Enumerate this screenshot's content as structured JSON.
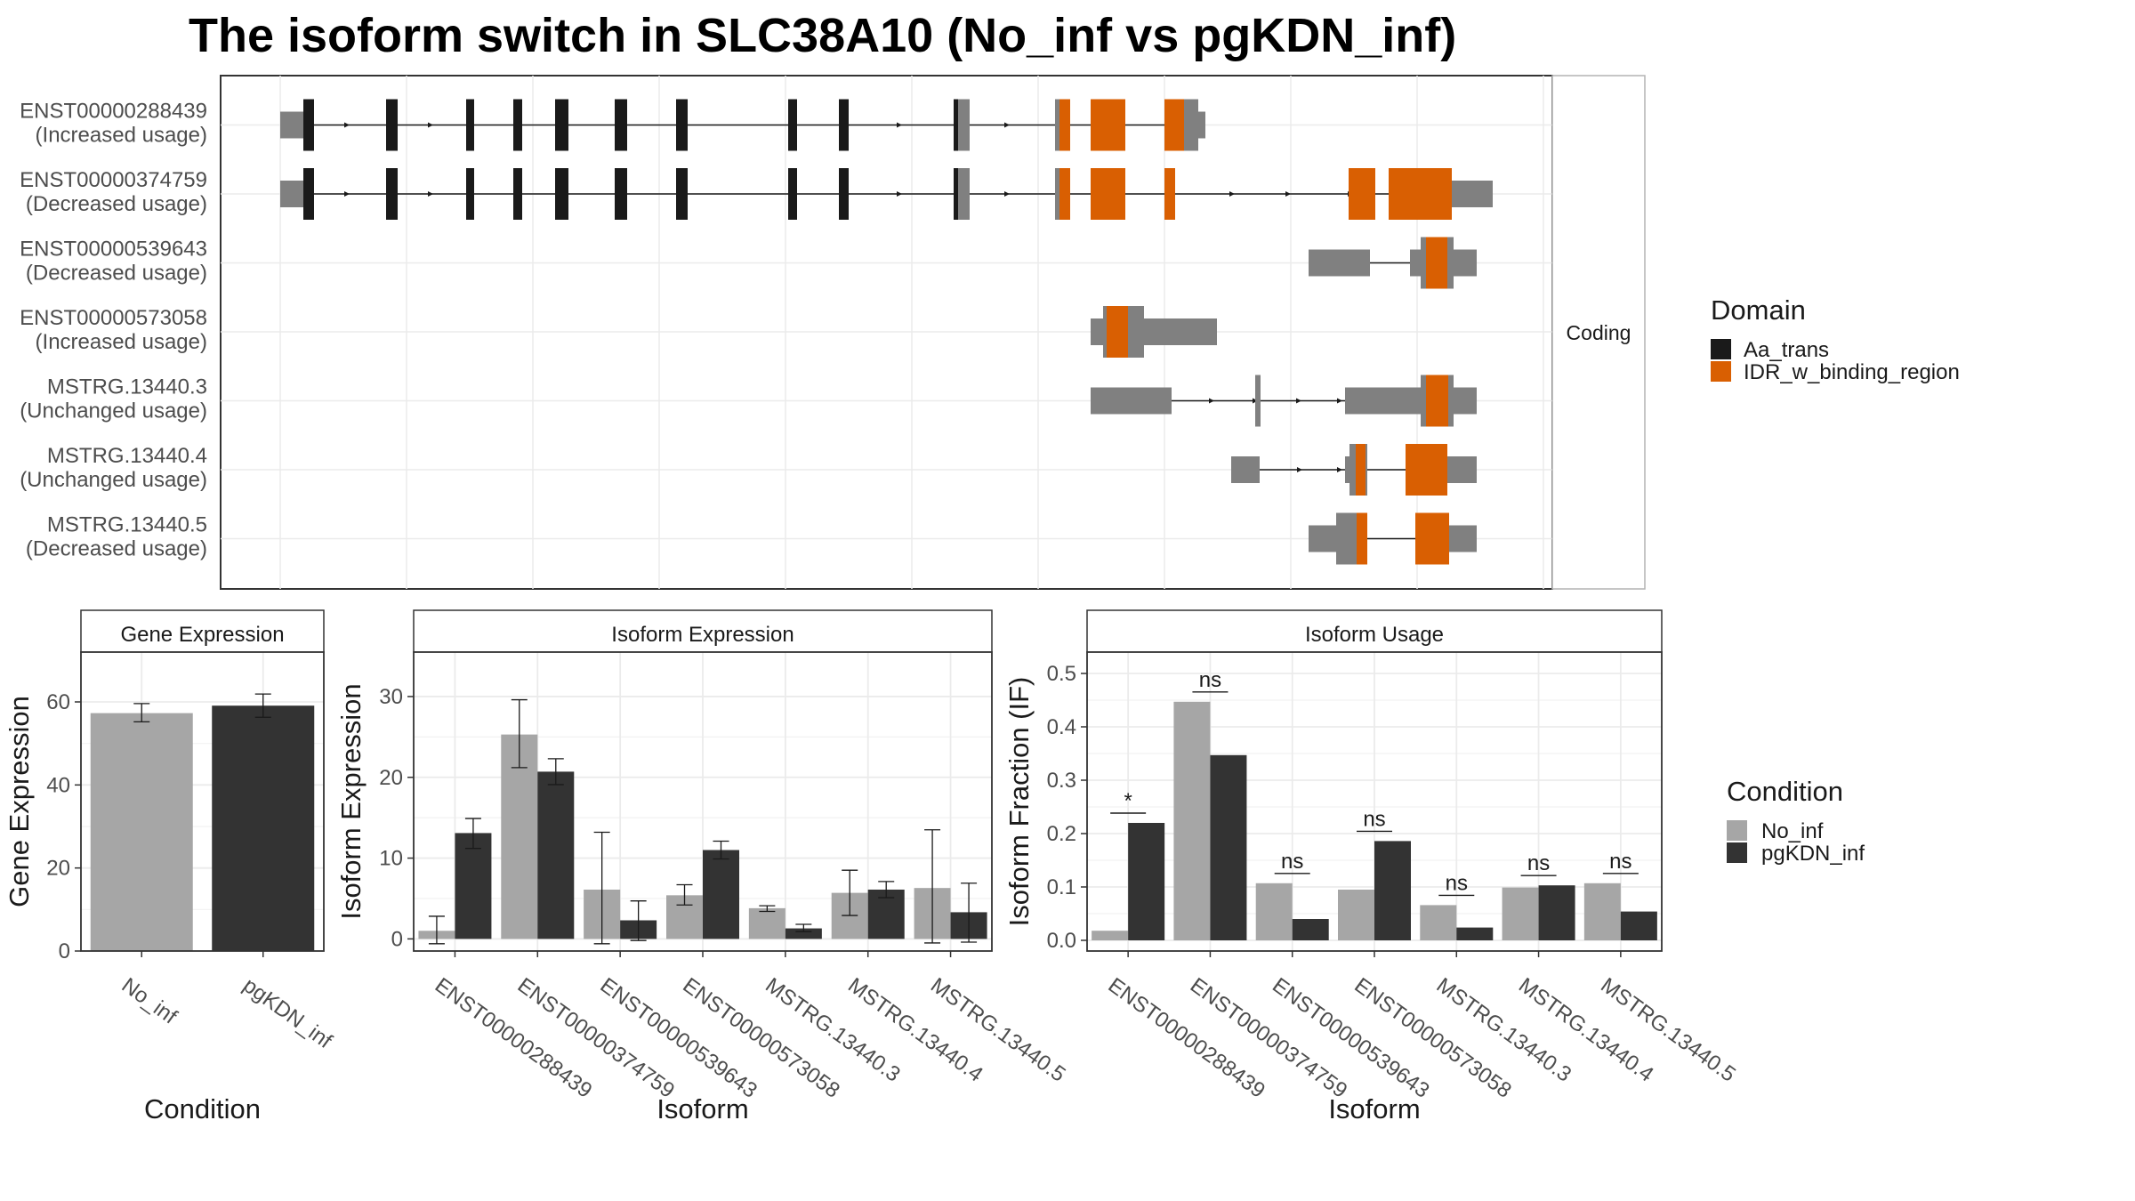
{
  "title": "The isoform switch in SLC38A10 (No_inf vs pgKDN_inf)",
  "colors": {
    "aa_trans": "#1a1a1a",
    "idr": "#d95f02",
    "utr": "#808080",
    "no_inf": "#a6a6a6",
    "pgkdn_inf": "#333333"
  },
  "chart_data": [
    {
      "id": "isoform-structure",
      "type": "gene-structure",
      "facet_label": "Coding",
      "legend": {
        "title": "Domain",
        "items": [
          "Aa_trans",
          "IDR_w_binding_region"
        ]
      },
      "rows": [
        {
          "name": "ENST00000288439",
          "usage": "(Increased usage)"
        },
        {
          "name": "ENST00000374759",
          "usage": "(Decreased usage)"
        },
        {
          "name": "ENST00000539643",
          "usage": "(Decreased usage)"
        },
        {
          "name": "ENST00000573058",
          "usage": "(Increased usage)"
        },
        {
          "name": "MSTRG.13440.3",
          "usage": "(Unchanged usage)"
        },
        {
          "name": "MSTRG.13440.4",
          "usage": "(Unchanged usage)"
        },
        {
          "name": "MSTRG.13440.5",
          "usage": "(Decreased usage)"
        }
      ]
    },
    {
      "id": "gene-expression",
      "type": "bar",
      "facet_label": "Gene Expression",
      "xlabel": "Condition",
      "ylabel": "Gene Expression",
      "ylim": [
        0,
        72
      ],
      "yticks": [
        0,
        20,
        40,
        60
      ],
      "categories": [
        "No_inf",
        "pgKDN_inf"
      ],
      "values": [
        57.3,
        59.1
      ],
      "errors": [
        [
          55.2,
          59.6
        ],
        [
          56.3,
          61.9
        ]
      ]
    },
    {
      "id": "isoform-expression",
      "type": "bar",
      "facet_label": "Isoform Expression",
      "xlabel": "Isoform",
      "ylabel": "Isoform Expression",
      "ylim": [
        -1.5,
        35.5
      ],
      "yticks": [
        0,
        10,
        20,
        30
      ],
      "categories": [
        "ENST00000288439",
        "ENST00000374759",
        "ENST00000539643",
        "ENST00000573058",
        "MSTRG.13440.3",
        "MSTRG.13440.4",
        "MSTRG.13440.5"
      ],
      "series": [
        {
          "name": "No_inf",
          "values": [
            1.0,
            25.3,
            6.1,
            5.4,
            3.8,
            5.7,
            6.3
          ],
          "errors": [
            [
              -0.6,
              2.8
            ],
            [
              21.2,
              29.6
            ],
            [
              -0.6,
              13.2
            ],
            [
              4.2,
              6.7
            ],
            [
              3.4,
              4.1
            ],
            [
              2.9,
              8.5
            ],
            [
              -0.5,
              13.5
            ]
          ]
        },
        {
          "name": "pgKDN_inf",
          "values": [
            13.1,
            20.7,
            2.3,
            11.0,
            1.3,
            6.1,
            3.3
          ],
          "errors": [
            [
              11.2,
              14.9
            ],
            [
              19.1,
              22.3
            ],
            [
              -0.2,
              4.7
            ],
            [
              9.9,
              12.1
            ],
            [
              0.9,
              1.8
            ],
            [
              5.1,
              7.1
            ],
            [
              -0.4,
              6.9
            ]
          ]
        }
      ]
    },
    {
      "id": "isoform-usage",
      "type": "bar",
      "facet_label": "Isoform Usage",
      "xlabel": "Isoform",
      "ylabel": "Isoform Fraction (IF)",
      "ylim": [
        -0.02,
        0.54
      ],
      "yticks": [
        0.0,
        0.1,
        0.2,
        0.3,
        0.4,
        0.5
      ],
      "categories": [
        "ENST00000288439",
        "ENST00000374759",
        "ENST00000539643",
        "ENST00000573058",
        "MSTRG.13440.3",
        "MSTRG.13440.4",
        "MSTRG.13440.5"
      ],
      "series": [
        {
          "name": "No_inf",
          "values": [
            0.018,
            0.447,
            0.107,
            0.095,
            0.066,
            0.099,
            0.107
          ]
        },
        {
          "name": "pgKDN_inf",
          "values": [
            0.22,
            0.347,
            0.04,
            0.186,
            0.024,
            0.103,
            0.054
          ]
        }
      ],
      "significance": [
        "*",
        "ns",
        "ns",
        "ns",
        "ns",
        "ns",
        "ns"
      ]
    }
  ],
  "condition_legend": {
    "title": "Condition",
    "items": [
      "No_inf",
      "pgKDN_inf"
    ]
  }
}
